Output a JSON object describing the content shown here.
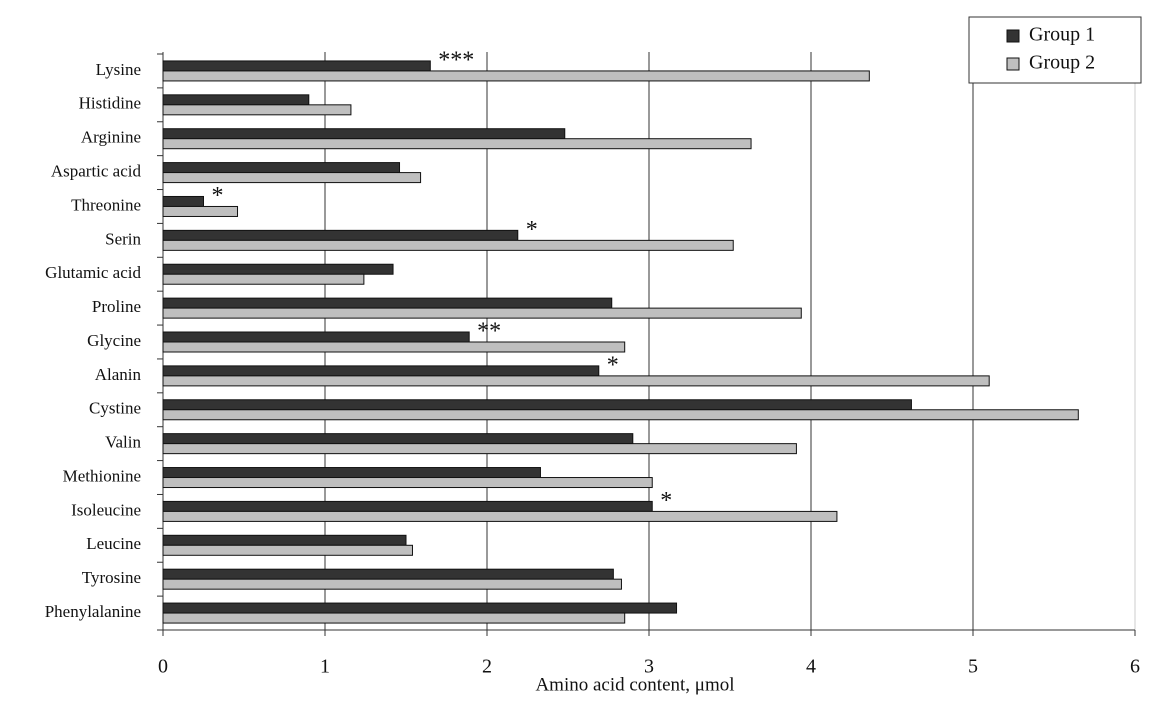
{
  "chart_data": {
    "type": "bar",
    "orientation": "horizontal",
    "x_label": "Amino acid content, μmol",
    "categories": [
      "Lysine",
      "Histidine",
      "Arginine",
      "Aspartic acid",
      "Threonine",
      "Serin",
      "Glutamic acid",
      "Proline",
      "Glycine",
      "Alanin",
      "Cystine",
      "Valin",
      "Methionine",
      "Isoleucine",
      "Leucine",
      "Tyrosine",
      "Phenylalanine"
    ],
    "series": [
      {
        "name": "Group 1",
        "color": "#333333",
        "values": [
          1.65,
          0.9,
          2.48,
          1.46,
          0.25,
          2.19,
          1.42,
          2.77,
          1.89,
          2.69,
          4.62,
          2.9,
          2.33,
          3.02,
          1.5,
          2.78,
          3.17
        ]
      },
      {
        "name": "Group 2",
        "color": "#bfbfbf",
        "values": [
          4.36,
          1.16,
          3.63,
          1.59,
          0.46,
          3.52,
          1.24,
          3.94,
          2.85,
          5.1,
          5.65,
          3.91,
          3.02,
          4.16,
          1.54,
          2.83,
          2.85
        ]
      }
    ],
    "significance": [
      "***",
      null,
      null,
      null,
      "*",
      "*",
      null,
      null,
      "**",
      "*",
      null,
      null,
      null,
      "*",
      null,
      null,
      null
    ],
    "xlim": [
      0,
      6
    ],
    "xticks": [
      0,
      1,
      2,
      3,
      4,
      5,
      6
    ],
    "grid": true,
    "legend": "top-right"
  }
}
